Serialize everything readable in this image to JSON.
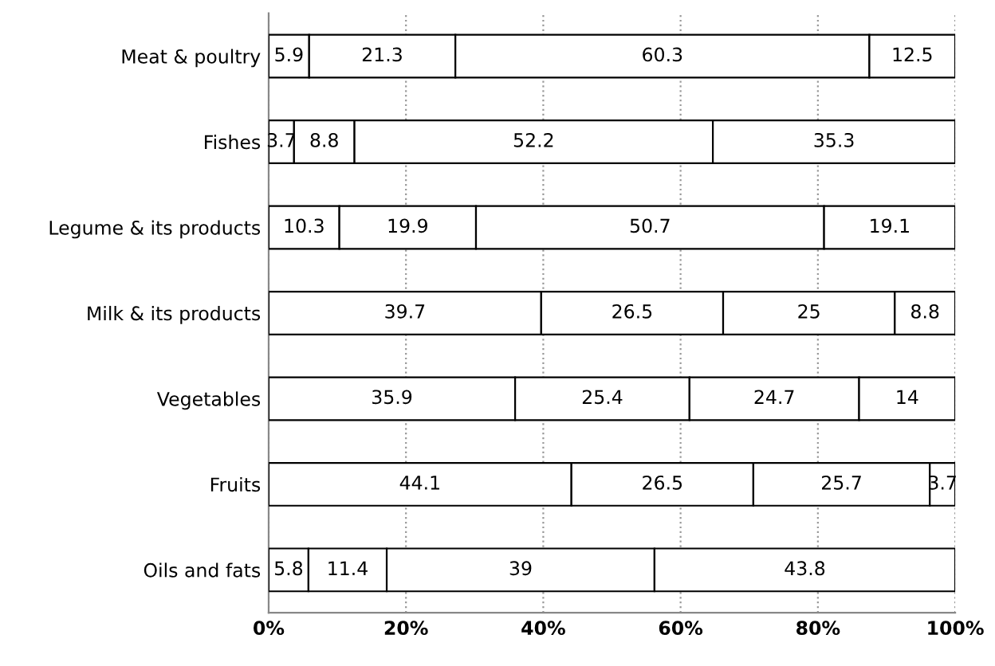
{
  "chart_data": {
    "type": "bar",
    "orientation": "horizontal",
    "stacked": true,
    "data_labels": true,
    "grid": "x",
    "categories": [
      "Meat & poultry",
      "Fishes",
      "Legume & its products",
      "Milk & its products",
      "Vegetables",
      "Fruits",
      "Oils and fats"
    ],
    "series": [
      {
        "color": "#ffffff",
        "values": [
          5.9,
          3.7,
          10.3,
          39.7,
          35.9,
          44.1,
          5.8
        ]
      },
      {
        "color": "#ffffff",
        "values": [
          21.3,
          8.8,
          19.9,
          26.5,
          25.4,
          26.5,
          11.4
        ]
      },
      {
        "color": "#ffffff",
        "values": [
          60.3,
          52.2,
          50.7,
          25,
          24.7,
          25.7,
          39
        ]
      },
      {
        "color": "#ffffff",
        "values": [
          12.5,
          35.3,
          19.1,
          8.8,
          14,
          3.7,
          43.8
        ]
      }
    ],
    "xlim": [
      0,
      100
    ],
    "xticks": [
      {
        "value": 0,
        "label": "0%"
      },
      {
        "value": 20,
        "label": "20%"
      },
      {
        "value": 40,
        "label": "40%"
      },
      {
        "value": 60,
        "label": "60%"
      },
      {
        "value": 80,
        "label": "80%"
      },
      {
        "value": 100,
        "label": "100%"
      }
    ]
  }
}
